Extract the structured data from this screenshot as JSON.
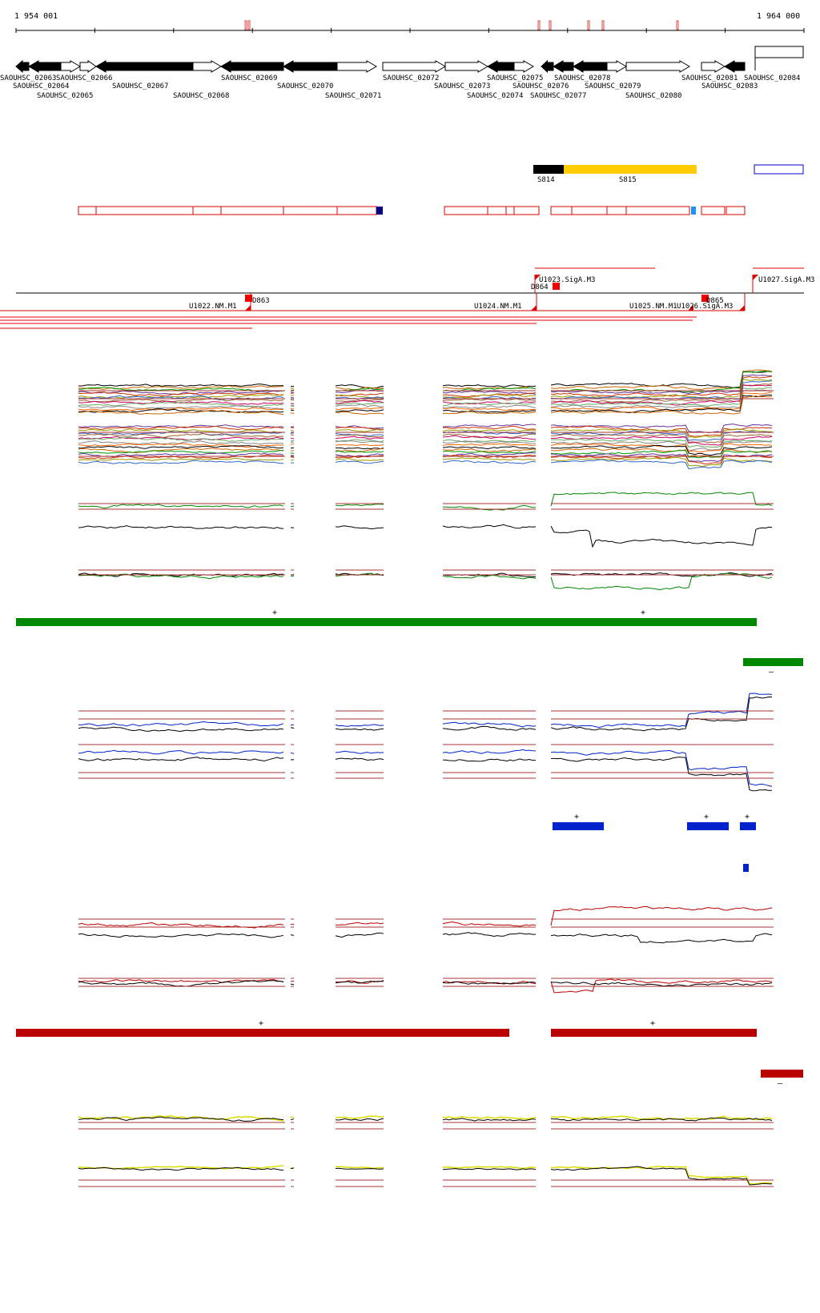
{
  "ruler": {
    "start_label": "1 954 001",
    "end_label": "1 964 000"
  },
  "genes": [
    {
      "name": "SAOUHSC_02063",
      "strand": "-"
    },
    {
      "name": "SAOUHSC_02064",
      "strand": "-"
    },
    {
      "name": "SAOUHSC_02065",
      "strand": "+"
    },
    {
      "name": "SAOUHSC_02066",
      "strand": "+"
    },
    {
      "name": "SAOUHSC_02067",
      "strand": "-"
    },
    {
      "name": "SAOUHSC_02068",
      "strand": "+"
    },
    {
      "name": "SAOUHSC_02069",
      "strand": "-"
    },
    {
      "name": "SAOUHSC_02070",
      "strand": "-"
    },
    {
      "name": "SAOUHSC_02071",
      "strand": "+"
    },
    {
      "name": "SAOUHSC_02072",
      "strand": "+"
    },
    {
      "name": "SAOUHSC_02073",
      "strand": "+"
    },
    {
      "name": "SAOUHSC_02074",
      "strand": "-"
    },
    {
      "name": "SAOUHSC_02075",
      "strand": "+"
    },
    {
      "name": "SAOUHSC_02076",
      "strand": "-"
    },
    {
      "name": "SAOUHSC_02077",
      "strand": "-"
    },
    {
      "name": "SAOUHSC_02078",
      "strand": "-"
    },
    {
      "name": "SAOUHSC_02079",
      "strand": "+"
    },
    {
      "name": "SAOUHSC_02080",
      "strand": "+"
    },
    {
      "name": "SAOUHSC_02081",
      "strand": "+"
    },
    {
      "name": "SAOUHSC_02083",
      "strand": "-"
    },
    {
      "name": "SAOUHSC_02084",
      "strand": "+"
    }
  ],
  "s_regions": [
    {
      "label": "S814",
      "color": "#000000"
    },
    {
      "label": "S815",
      "color": "#ffcc00"
    }
  ],
  "promoter_labels": {
    "top": [
      "U1023.SigA.M3",
      "U1027.SigA.M3"
    ],
    "bottom": [
      "U1022.NM.M1",
      "U1024.NM.M1",
      "U1025.NM.M1",
      "U1026.SigA.M3"
    ],
    "d_labels": [
      "D863",
      "D864",
      "D865"
    ]
  },
  "strand_marks": {
    "green_plus": "+",
    "green_minus": "–",
    "blue_plus": "+",
    "red_plus": "+",
    "red_minus": "–"
  },
  "colors": {
    "green": "#008800",
    "blue": "#0022cc",
    "red": "#bb0000",
    "yellow": "#dddd00",
    "ref_line": "#aa3333"
  }
}
